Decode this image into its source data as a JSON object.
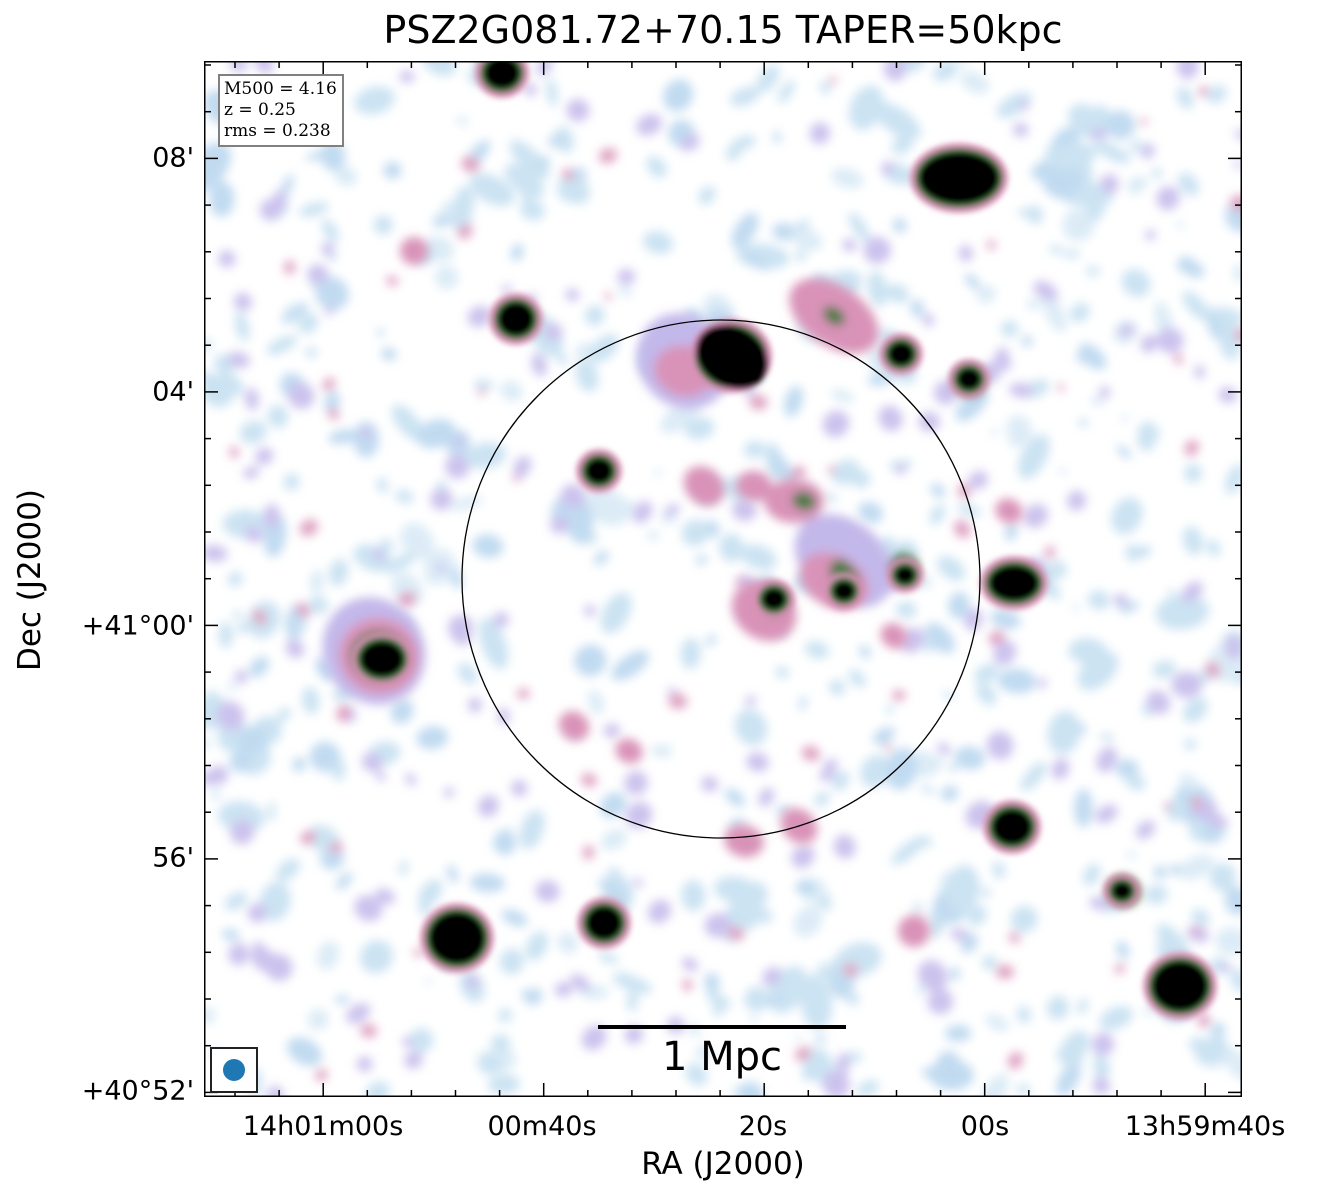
{
  "title": "PSZ2G081.72+70.15 TAPER=50kpc",
  "x_axis": {
    "label": "RA (J2000)",
    "ticks": [
      "14h01m00s",
      "00m40s",
      "20s",
      "00s",
      "13h59m40s"
    ]
  },
  "y_axis": {
    "label": "Dec (J2000)",
    "ticks": [
      "08'",
      "04'",
      "+41°00'",
      "56'",
      "+40°52'"
    ]
  },
  "info_box": {
    "m500": "M500 = 4.16",
    "z": "z = 0.25",
    "rms": "rms = 0.238"
  },
  "scale_bar": {
    "label": "1 Mpc"
  },
  "colors": {
    "beam": "#1f77b4",
    "faint": "#c2def0",
    "lavender": "#c3b8ea",
    "pink": "#d993b8",
    "green": "#3e7a3a",
    "core": "#000000"
  },
  "image_description": {
    "colormap": "cubehelix-like (white → light blue → lavender → pink → green → black)",
    "overlay": "black circle marking the cluster region"
  }
}
